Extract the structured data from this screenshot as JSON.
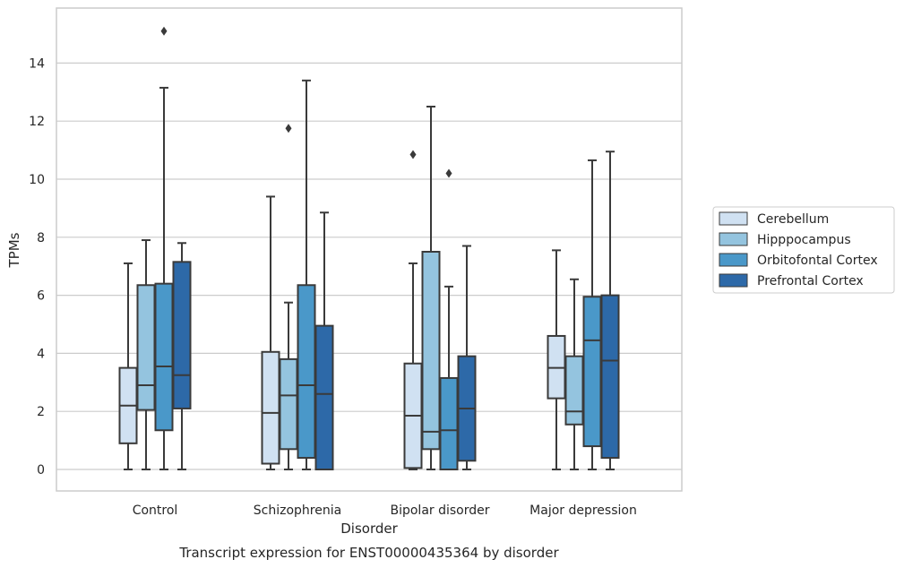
{
  "chart_data": {
    "type": "box",
    "title": "",
    "caption": "Transcript expression for ENST00000435364 by disorder",
    "xlabel": "Disorder",
    "ylabel": "TPMs",
    "ylim": [
      -0.7,
      15.8
    ],
    "yticks": [
      0,
      2,
      4,
      6,
      8,
      10,
      12,
      14
    ],
    "grid": "horizontal",
    "legend_position": "right",
    "categories": [
      "Control",
      "Schizophrenia",
      "Bipolar disorder",
      "Major depression"
    ],
    "series": [
      {
        "name": "Cerebellum",
        "color": "#d0e1f2",
        "boxes": [
          {
            "whisker_low": 0.0,
            "q1": 0.9,
            "median": 2.2,
            "q3": 3.5,
            "whisker_high": 7.1,
            "outliers": []
          },
          {
            "whisker_low": 0.0,
            "q1": 0.2,
            "median": 1.95,
            "q3": 4.05,
            "whisker_high": 9.4,
            "outliers": []
          },
          {
            "whisker_low": 0.0,
            "q1": 0.05,
            "median": 1.85,
            "q3": 3.65,
            "whisker_high": 7.1,
            "outliers": [
              10.85
            ]
          },
          {
            "whisker_low": 0.0,
            "q1": 2.45,
            "median": 3.5,
            "q3": 4.6,
            "whisker_high": 7.55,
            "outliers": []
          }
        ]
      },
      {
        "name": "Hipppocampus",
        "color": "#94c4df",
        "boxes": [
          {
            "whisker_low": 0.0,
            "q1": 2.05,
            "median": 2.9,
            "q3": 6.35,
            "whisker_high": 7.9,
            "outliers": []
          },
          {
            "whisker_low": 0.0,
            "q1": 0.7,
            "median": 2.55,
            "q3": 3.8,
            "whisker_high": 5.75,
            "outliers": [
              11.75
            ]
          },
          {
            "whisker_low": 0.0,
            "q1": 0.7,
            "median": 1.3,
            "q3": 7.5,
            "whisker_high": 12.5,
            "outliers": []
          },
          {
            "whisker_low": 0.0,
            "q1": 1.55,
            "median": 2.0,
            "q3": 3.9,
            "whisker_high": 6.55,
            "outliers": []
          }
        ]
      },
      {
        "name": "Orbitofontal Cortex",
        "color": "#4a98c9",
        "boxes": [
          {
            "whisker_low": 0.0,
            "q1": 1.35,
            "median": 3.55,
            "q3": 6.4,
            "whisker_high": 13.15,
            "outliers": [
              15.1
            ]
          },
          {
            "whisker_low": 0.0,
            "q1": 0.4,
            "median": 2.9,
            "q3": 6.35,
            "whisker_high": 13.4,
            "outliers": []
          },
          {
            "whisker_low": 0.0,
            "q1": 0.0,
            "median": 1.35,
            "q3": 3.15,
            "whisker_high": 6.3,
            "outliers": [
              10.2
            ]
          },
          {
            "whisker_low": 0.0,
            "q1": 0.8,
            "median": 4.45,
            "q3": 5.95,
            "whisker_high": 10.65,
            "outliers": []
          }
        ]
      },
      {
        "name": "Prefrontal Cortex",
        "color": "#2d69a8",
        "boxes": [
          {
            "whisker_low": 0.0,
            "q1": 2.1,
            "median": 3.25,
            "q3": 7.15,
            "whisker_high": 7.8,
            "outliers": []
          },
          {
            "whisker_low": 0.0,
            "q1": 0.0,
            "median": 2.6,
            "q3": 4.95,
            "whisker_high": 8.85,
            "outliers": []
          },
          {
            "whisker_low": 0.0,
            "q1": 0.3,
            "median": 2.1,
            "q3": 3.9,
            "whisker_high": 7.7,
            "outliers": []
          },
          {
            "whisker_low": 0.0,
            "q1": 0.4,
            "median": 3.75,
            "q3": 6.0,
            "whisker_high": 10.95,
            "outliers": []
          }
        ]
      }
    ]
  }
}
